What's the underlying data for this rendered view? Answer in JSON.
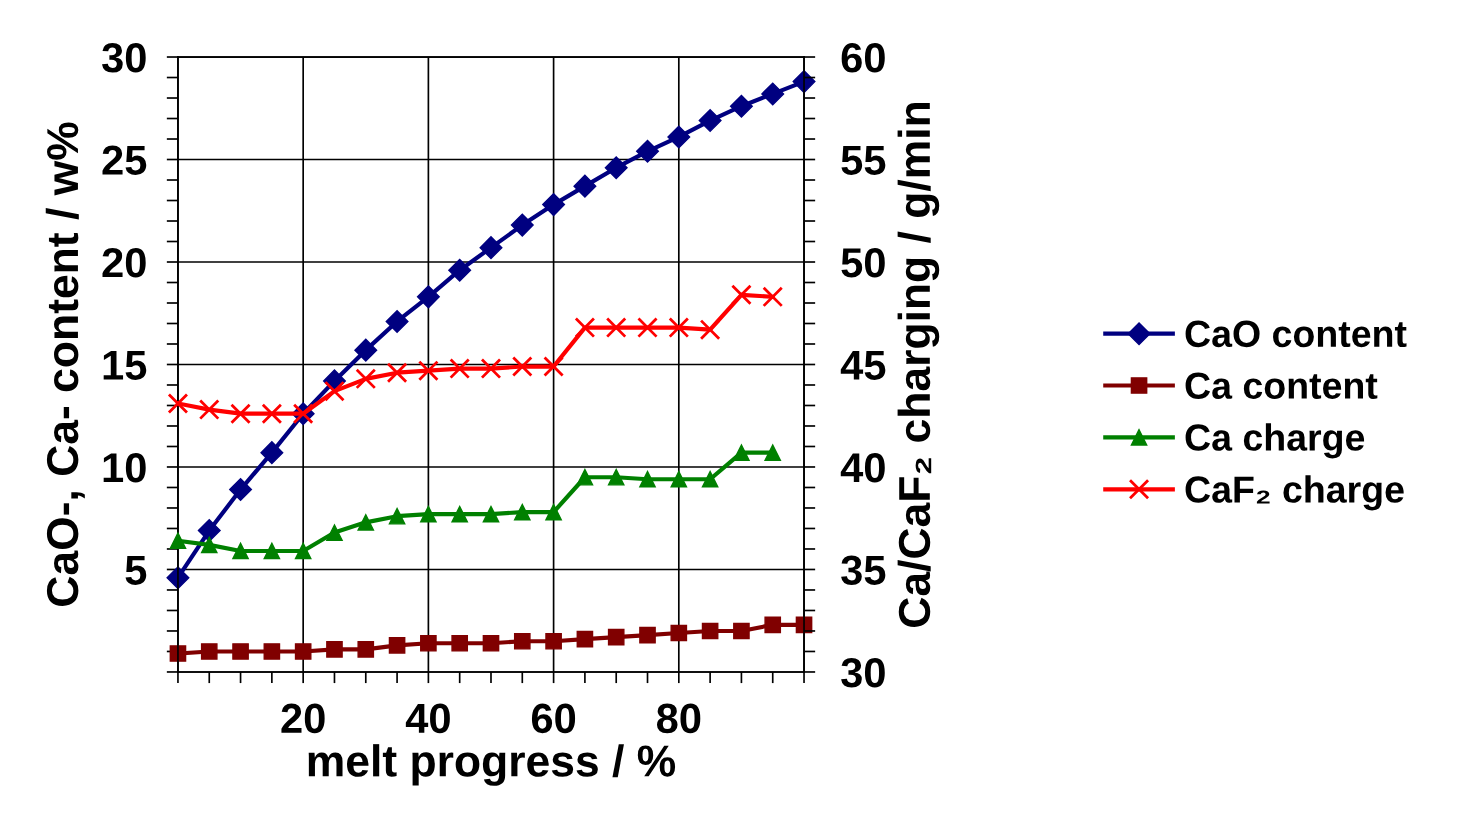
{
  "chart_data": {
    "type": "line",
    "xlabel": "melt progress / %",
    "ylabel": "CaO-, Ca- content / w%",
    "y2label": "Ca/CaF₂ charging / g/min",
    "x": [
      0,
      5,
      10,
      15,
      20,
      25,
      30,
      35,
      40,
      45,
      50,
      55,
      60,
      65,
      70,
      75,
      80,
      85,
      90,
      95,
      100
    ],
    "series": [
      {
        "name": "CaO content",
        "color": "#000080",
        "marker": "diamond",
        "values": [
          4.6,
          6.9,
          8.9,
          10.7,
          12.6,
          14.2,
          15.7,
          17.1,
          18.3,
          19.6,
          20.7,
          21.8,
          22.8,
          23.7,
          24.6,
          25.4,
          26.1,
          26.9,
          27.6,
          28.2,
          28.8
        ]
      },
      {
        "name": "Ca content",
        "color": "#800000",
        "marker": "square",
        "values": [
          0.9,
          1.0,
          1.0,
          1.0,
          1.0,
          1.1,
          1.1,
          1.3,
          1.4,
          1.4,
          1.4,
          1.5,
          1.5,
          1.6,
          1.7,
          1.8,
          1.9,
          2.0,
          2.0,
          2.3,
          2.3
        ]
      },
      {
        "name": "Ca charge",
        "color": "#008000",
        "marker": "triangle",
        "axis": "y2",
        "x": [
          0,
          5,
          10,
          15,
          20,
          25,
          30,
          35,
          40,
          45,
          50,
          55,
          60,
          65,
          70,
          75,
          80,
          85,
          90,
          95
        ],
        "values": [
          36.4,
          36.2,
          35.9,
          35.9,
          35.9,
          36.8,
          37.3,
          37.6,
          37.7,
          37.7,
          37.7,
          37.8,
          37.8,
          39.5,
          39.5,
          39.4,
          39.4,
          39.4,
          40.7,
          40.7
        ]
      },
      {
        "name": "CaF₂ charge",
        "color": "#ff0000",
        "marker": "cross",
        "axis": "y2",
        "x": [
          0,
          5,
          10,
          15,
          20,
          25,
          30,
          35,
          40,
          45,
          50,
          55,
          60,
          65,
          70,
          75,
          80,
          85,
          90,
          95
        ],
        "values": [
          43.1,
          42.8,
          42.6,
          42.6,
          42.6,
          43.7,
          44.3,
          44.6,
          44.7,
          44.8,
          44.8,
          44.9,
          44.9,
          46.8,
          46.8,
          46.8,
          46.8,
          46.7,
          48.4,
          48.3
        ]
      }
    ],
    "xlim": [
      0,
      100
    ],
    "xticks": [
      {
        "value": 0,
        "label": null
      },
      {
        "value": 5,
        "label": null
      },
      {
        "value": 10,
        "label": null
      },
      {
        "value": 15,
        "label": null
      },
      20,
      {
        "value": 25,
        "label": null
      },
      {
        "value": 30,
        "label": null
      },
      {
        "value": 35,
        "label": null
      },
      40,
      {
        "value": 45,
        "label": null
      },
      {
        "value": 50,
        "label": null
      },
      {
        "value": 55,
        "label": null
      },
      60,
      {
        "value": 65,
        "label": null
      },
      {
        "value": 70,
        "label": null
      },
      {
        "value": 75,
        "label": null
      },
      80,
      {
        "value": 85,
        "label": null
      },
      {
        "value": 90,
        "label": null
      },
      {
        "value": 95,
        "label": null
      },
      {
        "value": 100,
        "label": null
      }
    ],
    "ylim": [
      0,
      30
    ],
    "yticks": [
      {
        "value": 0,
        "label": null
      },
      {
        "value": 1,
        "label": null
      },
      {
        "value": 2,
        "label": null
      },
      {
        "value": 3,
        "label": null
      },
      {
        "value": 4,
        "label": null
      },
      5,
      {
        "value": 6,
        "label": null
      },
      {
        "value": 7,
        "label": null
      },
      {
        "value": 8,
        "label": null
      },
      {
        "value": 9,
        "label": null
      },
      10,
      {
        "value": 11,
        "label": null
      },
      {
        "value": 12,
        "label": null
      },
      {
        "value": 13,
        "label": null
      },
      {
        "value": 14,
        "label": null
      },
      15,
      {
        "value": 16,
        "label": null
      },
      {
        "value": 17,
        "label": null
      },
      {
        "value": 18,
        "label": null
      },
      {
        "value": 19,
        "label": null
      },
      20,
      {
        "value": 21,
        "label": null
      },
      {
        "value": 22,
        "label": null
      },
      {
        "value": 23,
        "label": null
      },
      {
        "value": 24,
        "label": null
      },
      25,
      {
        "value": 26,
        "label": null
      },
      {
        "value": 27,
        "label": null
      },
      {
        "value": 28,
        "label": null
      },
      {
        "value": 29,
        "label": null
      },
      30
    ],
    "y2lim": [
      30,
      60
    ],
    "y2ticks": [
      30,
      {
        "value": 31,
        "label": null
      },
      {
        "value": 32,
        "label": null
      },
      {
        "value": 33,
        "label": null
      },
      {
        "value": 34,
        "label": null
      },
      35,
      {
        "value": 36,
        "label": null
      },
      {
        "value": 37,
        "label": null
      },
      {
        "value": 38,
        "label": null
      },
      {
        "value": 39,
        "label": null
      },
      40,
      {
        "value": 41,
        "label": null
      },
      {
        "value": 42,
        "label": null
      },
      {
        "value": 43,
        "label": null
      },
      {
        "value": 44,
        "label": null
      },
      45,
      {
        "value": 46,
        "label": null
      },
      {
        "value": 47,
        "label": null
      },
      {
        "value": 48,
        "label": null
      },
      {
        "value": 49,
        "label": null
      },
      50,
      {
        "value": 51,
        "label": null
      },
      {
        "value": 52,
        "label": null
      },
      {
        "value": 53,
        "label": null
      },
      {
        "value": 54,
        "label": null
      },
      55,
      {
        "value": 56,
        "label": null
      },
      {
        "value": 57,
        "label": null
      },
      {
        "value": 58,
        "label": null
      },
      {
        "value": 59,
        "label": null
      },
      60
    ],
    "grid": true,
    "legend": "right",
    "line_style": "solid"
  }
}
